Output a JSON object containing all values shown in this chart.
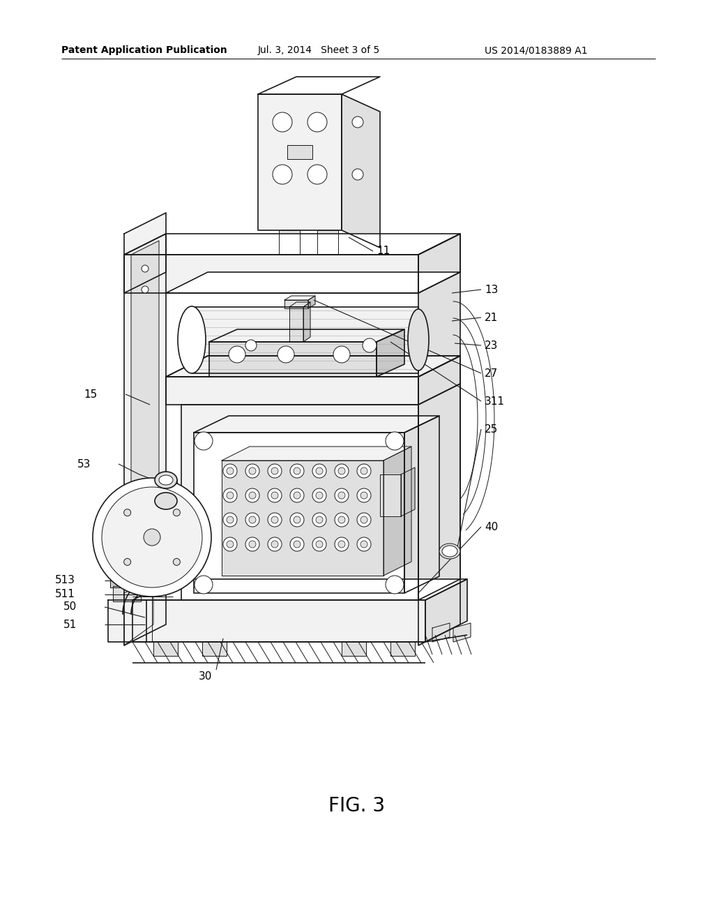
{
  "bg_color": "#ffffff",
  "header_left": "Patent Application Publication",
  "header_center": "Jul. 3, 2014   Sheet 3 of 5",
  "header_right": "US 2014/0183889 A1",
  "fig_label": "FIG. 3",
  "header_fontsize": 10,
  "fig_label_fontsize": 20,
  "label_fontsize": 11,
  "line_color": "#1a1a1a",
  "fill_light": "#f2f2f2",
  "fill_mid": "#e0e0e0",
  "fill_dark": "#c8c8c8",
  "fill_white": "#ffffff"
}
